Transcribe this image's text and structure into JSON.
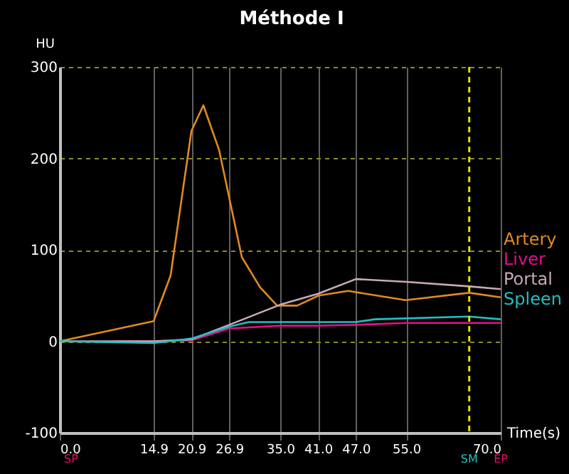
{
  "chart_data": {
    "type": "line",
    "title": "Méthode I",
    "ylabel": "HU",
    "xlabel": "Time(s)",
    "xlim": [
      0,
      70
    ],
    "ylim": [
      -100,
      300
    ],
    "xticks": [
      {
        "value": 0,
        "label": "0.0"
      },
      {
        "value": 14.9,
        "label": "14.9"
      },
      {
        "value": 20.9,
        "label": "20.9"
      },
      {
        "value": 26.9,
        "label": "26.9"
      },
      {
        "value": 35,
        "label": "35.0"
      },
      {
        "value": 41,
        "label": "41.0"
      },
      {
        "value": 47,
        "label": "47.0"
      },
      {
        "value": 55,
        "label": "55.0"
      },
      {
        "value": 70,
        "label": "70.0"
      }
    ],
    "yticks": [
      -100,
      0,
      100,
      200,
      300
    ],
    "grid": true,
    "legend": "right",
    "marker": "none",
    "line_style": "solid",
    "series": [
      {
        "name": "Artery",
        "color": "#e08a20",
        "x": [
          0,
          14.9,
          17.6,
          20.9,
          22.8,
          25.3,
          28.9,
          31.8,
          34.5,
          37.7,
          41.1,
          45.8,
          54.9,
          65,
          70
        ],
        "values": [
          0,
          22,
          72,
          230,
          258,
          209,
          92,
          59,
          39,
          39,
          50,
          55,
          45,
          53,
          48
        ]
      },
      {
        "name": "Liver",
        "color": "#e0108a",
        "x": [
          8.6,
          14.9,
          20.9,
          26.9,
          35,
          41,
          47,
          55,
          70
        ],
        "values": [
          0,
          0,
          1,
          14,
          17,
          17,
          18,
          20,
          20
        ]
      },
      {
        "name": "Portal",
        "color": "#c8a8b8",
        "x": [
          0,
          14.9,
          20.9,
          26.9,
          35,
          41,
          47,
          55,
          65,
          70
        ],
        "values": [
          0,
          0,
          2,
          18,
          40,
          52,
          68,
          65,
          60,
          57
        ]
      },
      {
        "name": "Spleen",
        "color": "#20c0c0",
        "x": [
          0,
          14.9,
          20.9,
          26.9,
          30,
          47,
          50,
          65,
          70
        ],
        "values": [
          0,
          -2,
          3,
          16,
          21,
          21,
          24,
          27,
          24
        ]
      }
    ],
    "ref_lines": [
      {
        "axis": "x",
        "value": 65,
        "label": "SM",
        "color": "#e0e000",
        "line_style": "dashed"
      }
    ],
    "annotations": [
      "SP",
      "EP"
    ]
  }
}
